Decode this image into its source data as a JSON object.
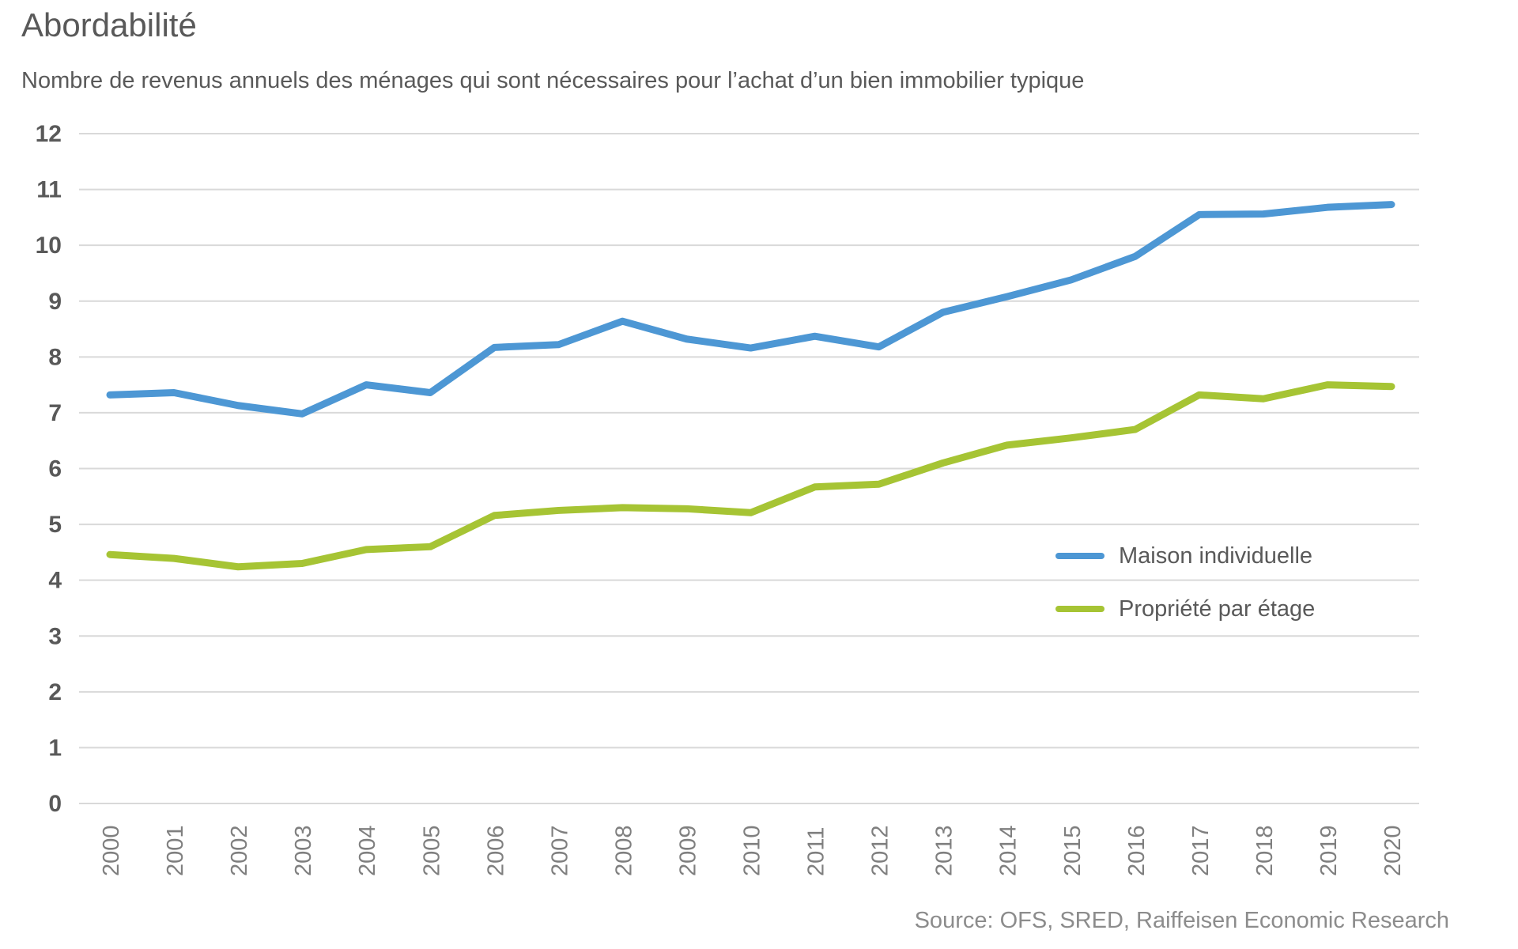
{
  "chart_data": {
    "type": "line",
    "title": "Abordabilité",
    "subtitle": "Nombre de revenus annuels des ménages qui sont nécessaires pour l’achat d’un bien immobilier typique",
    "source": "Source: OFS, SRED, Raiffeisen Economic Research",
    "categories": [
      2000,
      2001,
      2002,
      2003,
      2004,
      2005,
      2006,
      2007,
      2008,
      2009,
      2010,
      2011,
      2012,
      2013,
      2014,
      2015,
      2016,
      2017,
      2018,
      2019,
      2020
    ],
    "series": [
      {
        "name": "Maison individuelle",
        "color": "#4d97d4",
        "values": [
          7.32,
          7.36,
          7.13,
          6.98,
          7.5,
          7.36,
          8.17,
          8.22,
          8.64,
          8.32,
          8.16,
          8.37,
          8.18,
          8.8,
          9.08,
          9.38,
          9.8,
          10.55,
          10.56,
          10.68,
          10.73
        ]
      },
      {
        "name": "Propriété par étage",
        "color": "#a6c434",
        "values": [
          4.46,
          4.39,
          4.24,
          4.3,
          4.55,
          4.6,
          5.16,
          5.25,
          5.3,
          5.28,
          5.21,
          5.67,
          5.72,
          6.1,
          6.42,
          6.55,
          6.7,
          7.32,
          7.25,
          7.5,
          7.47
        ]
      }
    ],
    "xlabel": "",
    "ylabel": "",
    "ylim": [
      0,
      12
    ],
    "ytick_step": 1,
    "grid": true,
    "legend_position": "inside-right",
    "colors": {
      "gridline": "#d9d9d9",
      "y_tick_text": "#595959",
      "x_tick_text": "#7f7f7f",
      "title_text": "#595959",
      "source_text": "#8c8c8c"
    }
  },
  "legend": {
    "items": [
      {
        "label": "Maison individuelle",
        "color": "#4d97d4"
      },
      {
        "label": "Propriété par étage",
        "color": "#a6c434"
      }
    ]
  }
}
